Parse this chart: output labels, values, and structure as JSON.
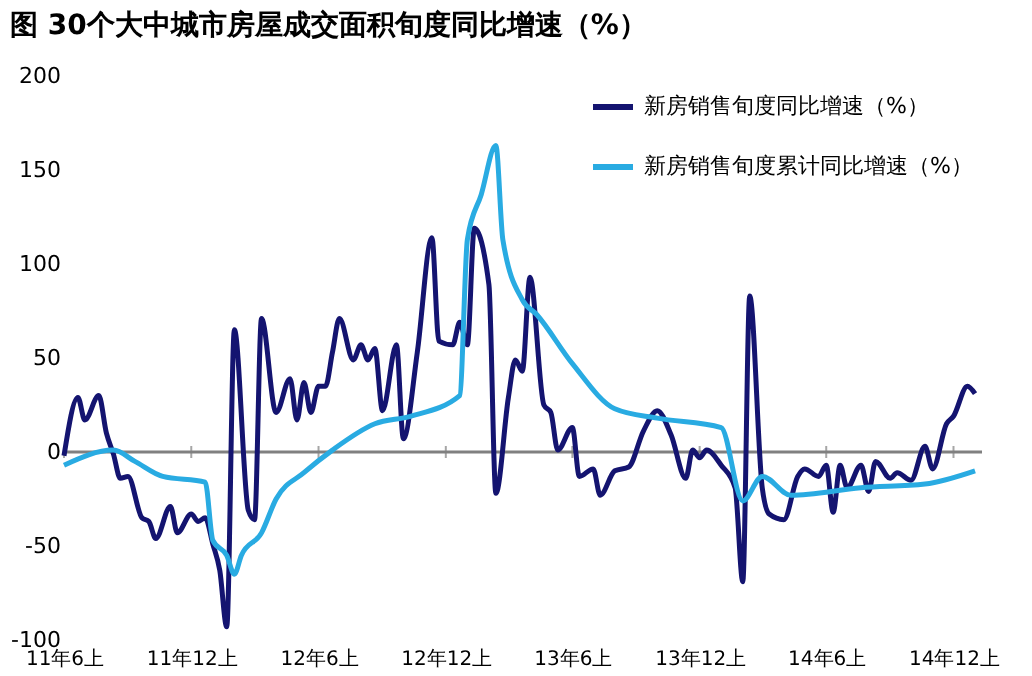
{
  "chart_data": {
    "type": "line",
    "title": "图  30个大中城市房屋成交面积旬度同比增速（%）",
    "xlim": [
      "2011-06-01",
      "2015-01-11"
    ],
    "xticks": [
      {
        "value": "2011-06-01",
        "label": "11年6上"
      },
      {
        "value": "2011-12-01",
        "label": "11年12上"
      },
      {
        "value": "2012-06-01",
        "label": "12年6上"
      },
      {
        "value": "2012-12-01",
        "label": "12年12上"
      },
      {
        "value": "2013-06-01",
        "label": "13年6上"
      },
      {
        "value": "2013-12-01",
        "label": "13年12上"
      },
      {
        "value": "2014-06-01",
        "label": "14年6上"
      },
      {
        "value": "2014-12-01",
        "label": "14年12上"
      }
    ],
    "ylim": [
      -100,
      200
    ],
    "yticks": [
      -100,
      -50,
      0,
      50,
      100,
      150,
      200
    ],
    "grid": false,
    "legend": "top right",
    "line_style": "solid",
    "marker": "none",
    "ref_lines": [
      {
        "axis": "y",
        "value": 0,
        "color": "#808080"
      }
    ],
    "series": [
      {
        "name": "新房销售旬度同比增速（%）",
        "color": "#141470",
        "x": [
          "2011-06-01",
          "2011-06-21",
          "2011-07-01",
          "2011-07-21",
          "2011-08-01",
          "2011-08-11",
          "2011-08-21",
          "2011-09-01",
          "2011-09-21",
          "2011-10-01",
          "2011-10-11",
          "2011-11-01",
          "2011-11-11",
          "2011-12-01",
          "2011-12-11",
          "2011-12-21",
          "2012-01-01",
          "2012-01-11",
          "2012-01-21",
          "2012-02-01",
          "2012-02-21",
          "2012-03-01",
          "2012-03-11",
          "2012-04-01",
          "2012-04-21",
          "2012-05-01",
          "2012-05-11",
          "2012-05-21",
          "2012-06-01",
          "2012-06-11",
          "2012-06-21",
          "2012-07-01",
          "2012-07-21",
          "2012-08-01",
          "2012-08-11",
          "2012-08-21",
          "2012-09-01",
          "2012-09-21",
          "2012-10-01",
          "2012-10-21",
          "2012-11-11",
          "2012-11-21",
          "2012-12-11",
          "2012-12-21",
          "2013-01-01",
          "2013-01-11",
          "2013-02-01",
          "2013-02-11",
          "2013-03-01",
          "2013-03-11",
          "2013-03-21",
          "2013-04-01",
          "2013-04-21",
          "2013-05-01",
          "2013-05-11",
          "2013-06-01",
          "2013-06-11",
          "2013-07-01",
          "2013-07-11",
          "2013-08-01",
          "2013-08-21",
          "2013-09-11",
          "2013-10-01",
          "2013-10-21",
          "2013-11-11",
          "2013-11-21",
          "2013-12-01",
          "2013-12-11",
          "2014-01-01",
          "2014-01-21",
          "2014-02-01",
          "2014-02-11",
          "2014-03-01",
          "2014-03-11",
          "2014-04-01",
          "2014-04-21",
          "2014-05-01",
          "2014-05-21",
          "2014-06-01",
          "2014-06-11",
          "2014-06-21",
          "2014-07-01",
          "2014-07-21",
          "2014-08-01",
          "2014-08-11",
          "2014-09-01",
          "2014-09-11",
          "2014-10-01",
          "2014-10-21",
          "2014-11-01",
          "2014-11-21",
          "2014-12-01",
          "2014-12-21",
          "2015-01-01"
        ],
        "values": [
          -2,
          29,
          17,
          30,
          10,
          -1,
          -14,
          -13,
          -35,
          -37,
          -46,
          -29,
          -43,
          -33,
          -37,
          -35,
          -49,
          -63,
          -93,
          65,
          -31,
          -36,
          71,
          21,
          39,
          17,
          37,
          21,
          35,
          35,
          53,
          71,
          49,
          57,
          49,
          55,
          22,
          57,
          7,
          53,
          114,
          59,
          57,
          69,
          57,
          119,
          89,
          -22,
          29,
          49,
          43,
          93,
          25,
          21,
          1,
          13,
          -13,
          -9,
          -23,
          -10,
          -8,
          11,
          22,
          9,
          -14,
          1,
          -3,
          1,
          -7,
          -19,
          -69,
          83,
          -19,
          -33,
          -36,
          -13,
          -9,
          -13,
          -7,
          -32,
          -7,
          -19,
          -7,
          -21,
          -5,
          -14,
          -11,
          -15,
          3,
          -9,
          15,
          19,
          35,
          31
        ]
      },
      {
        "name": "新房销售旬度累计同比增速（%）",
        "color": "#29abe2",
        "x": [
          "2011-06-01",
          "2011-08-11",
          "2011-09-11",
          "2011-10-21",
          "2011-12-21",
          "2012-01-01",
          "2012-01-21",
          "2012-02-01",
          "2012-02-11",
          "2012-03-11",
          "2012-04-01",
          "2012-05-11",
          "2012-06-21",
          "2012-08-21",
          "2012-10-11",
          "2012-12-21",
          "2013-01-01",
          "2013-01-21",
          "2013-02-11",
          "2013-02-21",
          "2013-03-21",
          "2013-04-11",
          "2013-06-01",
          "2013-08-01",
          "2013-10-01",
          "2014-01-01",
          "2014-02-01",
          "2014-03-01",
          "2014-04-11",
          "2014-07-21",
          "2014-10-21",
          "2015-01-01"
        ],
        "values": [
          -7,
          1,
          -5,
          -13,
          -16,
          -47,
          -55,
          -65,
          -55,
          -43,
          -25,
          -11,
          1,
          15,
          19,
          30,
          113,
          137,
          163,
          113,
          81,
          73,
          47,
          23,
          18,
          13,
          -26,
          -13,
          -23,
          -19,
          -17,
          -10
        ]
      }
    ]
  }
}
